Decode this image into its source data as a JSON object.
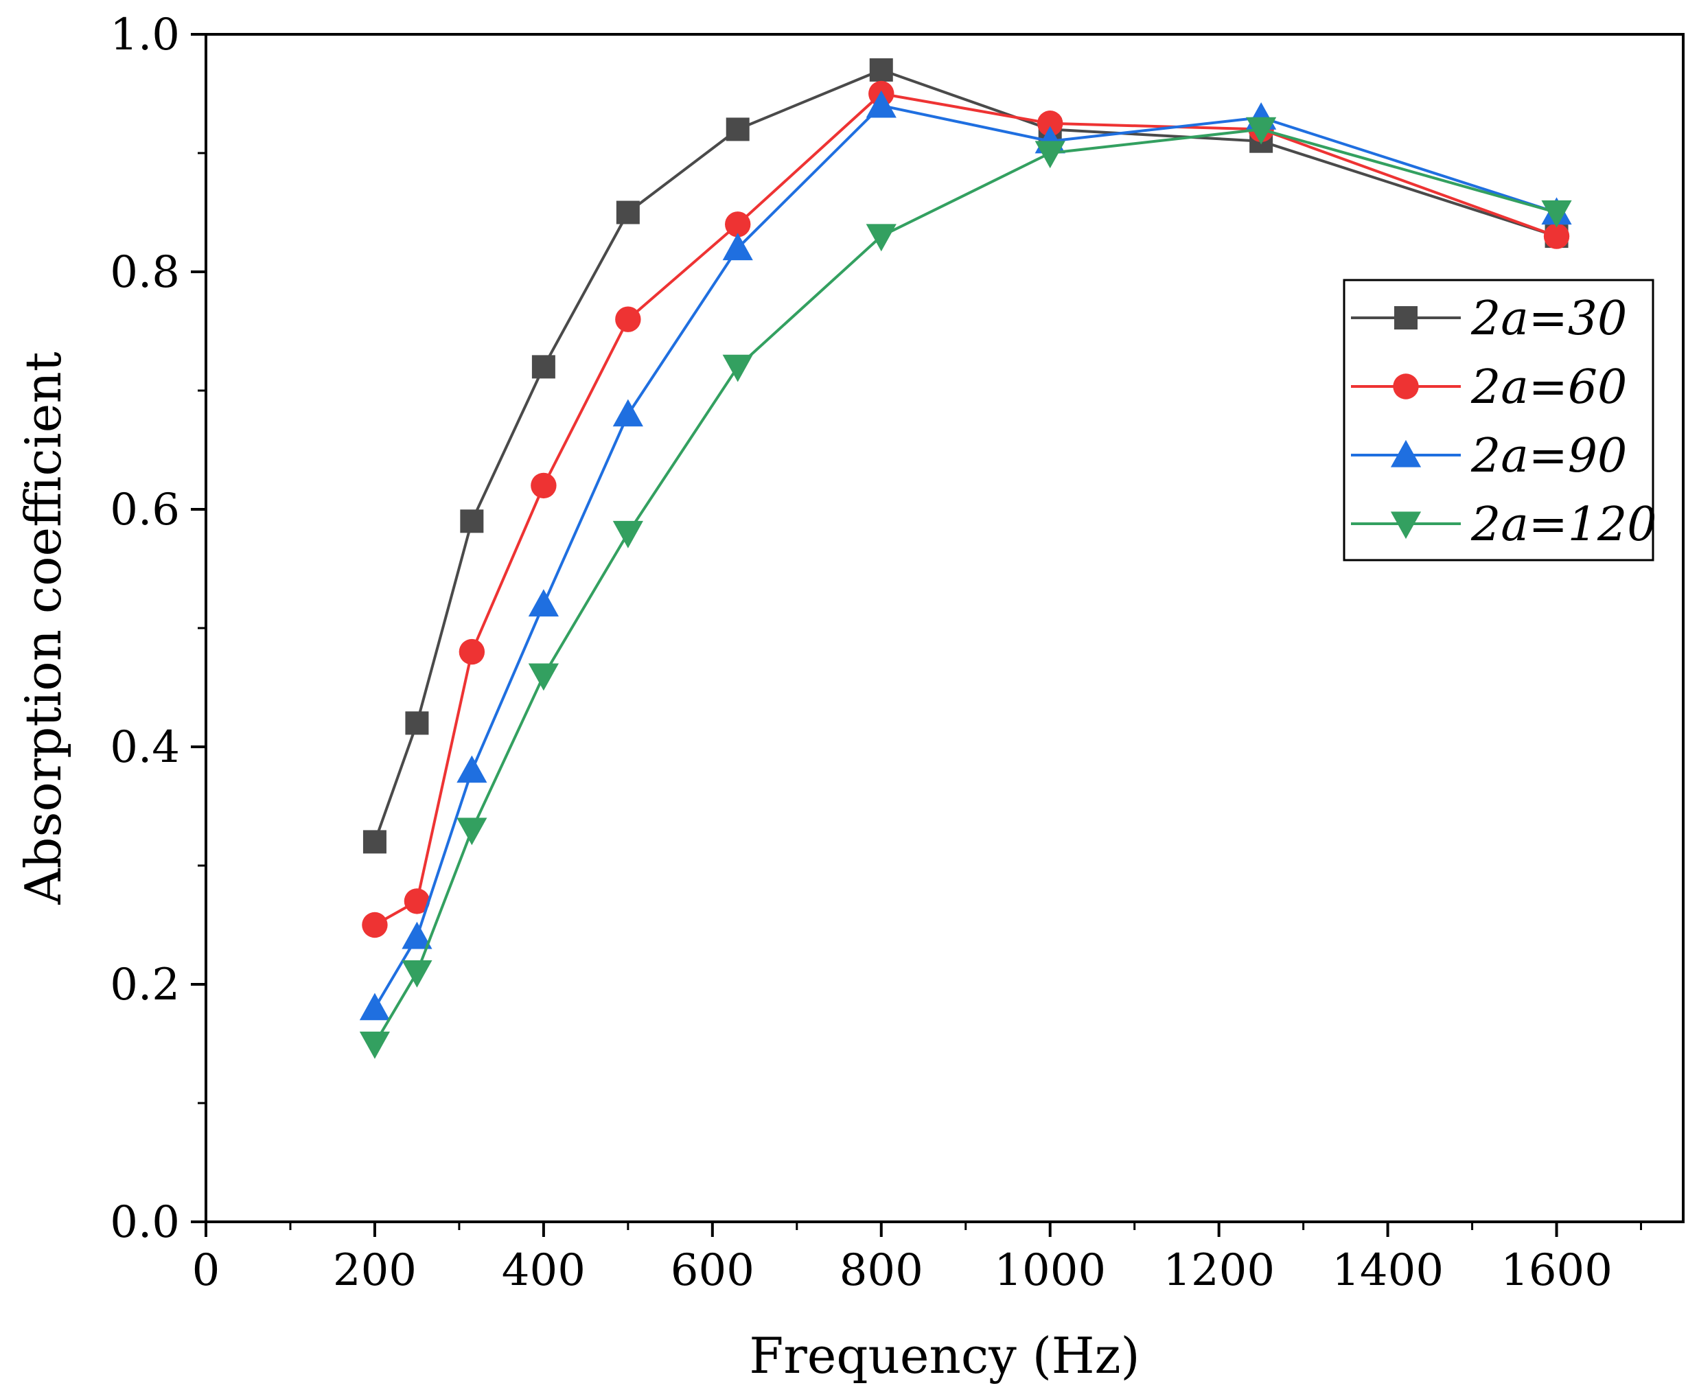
{
  "chart_data": {
    "type": "line",
    "xlabel": "Frequency (Hz)",
    "ylabel": "Absorption coefficient",
    "xlim": [
      0,
      1750
    ],
    "ylim": [
      0,
      1.0
    ],
    "xticks": [
      "0",
      "200",
      "400",
      "600",
      "800",
      "1000",
      "1200",
      "1400",
      "1600"
    ],
    "yticks": [
      "0.0",
      "0.2",
      "0.4",
      "0.6",
      "0.8",
      "1.0"
    ],
    "legend_position": "right",
    "grid": false,
    "x": [
      200,
      250,
      315,
      400,
      500,
      630,
      800,
      1000,
      1250,
      1600
    ],
    "series": [
      {
        "name": "2a=30",
        "color": "#4a4a4a",
        "marker": "square",
        "values": [
          0.32,
          0.42,
          0.59,
          0.72,
          0.85,
          0.92,
          0.97,
          0.92,
          0.91,
          0.83
        ]
      },
      {
        "name": "2a=60",
        "color": "#ee3333",
        "marker": "circle",
        "values": [
          0.25,
          0.27,
          0.48,
          0.62,
          0.76,
          0.84,
          0.95,
          0.925,
          0.92,
          0.83
        ]
      },
      {
        "name": "2a=90",
        "color": "#1f6fe0",
        "marker": "triangle-up",
        "values": [
          0.18,
          0.24,
          0.38,
          0.52,
          0.68,
          0.82,
          0.94,
          0.91,
          0.93,
          0.85
        ]
      },
      {
        "name": "2a=120",
        "color": "#33a060",
        "marker": "triangle-down",
        "values": [
          0.15,
          0.21,
          0.33,
          0.46,
          0.58,
          0.72,
          0.83,
          0.9,
          0.92,
          0.85
        ]
      }
    ]
  }
}
